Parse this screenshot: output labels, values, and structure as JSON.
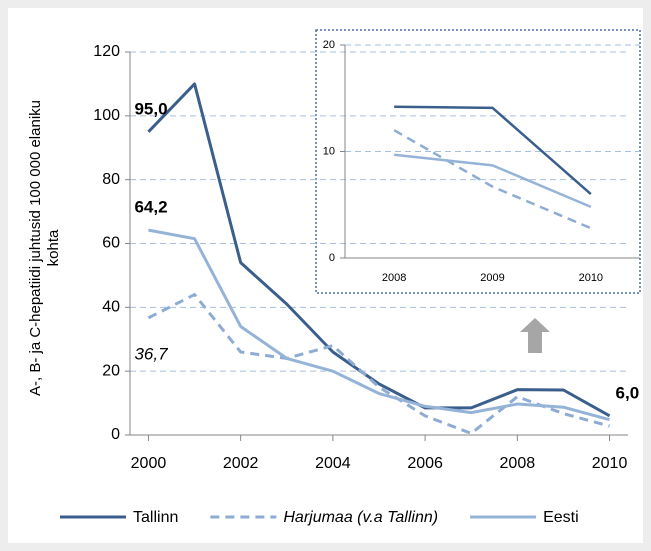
{
  "chart_data": [
    {
      "type": "line",
      "ylabel": "A-, B- ja C-hepatiidi juhtusid 100 000 elaniku kohta",
      "x": [
        2000,
        2001,
        2002,
        2003,
        2004,
        2005,
        2006,
        2007,
        2008,
        2009,
        2010
      ],
      "xlim": [
        1999.6,
        2010.4
      ],
      "xticks": [
        2000,
        2002,
        2004,
        2006,
        2008,
        2010
      ],
      "ylim": [
        0,
        120
      ],
      "yticks": [
        0,
        20,
        40,
        60,
        80,
        100,
        120
      ],
      "grid": true,
      "legend": "bottom",
      "series": [
        {
          "name": "Tallinn",
          "color": "#3b5f8c",
          "dash": false,
          "values": [
            95.0,
            110,
            54,
            41,
            26,
            16,
            8.5,
            8.5,
            14.2,
            14.1,
            6.0
          ],
          "value_labels": [
            "95,0",
            null,
            null,
            null,
            null,
            null,
            null,
            null,
            null,
            null,
            "6,0"
          ]
        },
        {
          "name": "Harjumaa (v.a Tallinn)",
          "color": "#8eacd3",
          "dash": true,
          "values": [
            36.7,
            44,
            26,
            24,
            28,
            15,
            6,
            0.5,
            12,
            6.7,
            2.8
          ],
          "value_labels": [
            "36,7",
            null,
            null,
            null,
            null,
            null,
            null,
            null,
            null,
            null,
            null
          ]
        },
        {
          "name": "Eesti",
          "color": "#95b3d7",
          "dash": false,
          "values": [
            64.2,
            61.5,
            34,
            24,
            20,
            13,
            9,
            7,
            9.7,
            8.7,
            4.8
          ],
          "value_labels": [
            "64,2",
            null,
            null,
            null,
            null,
            null,
            null,
            null,
            null,
            null,
            null
          ]
        }
      ]
    },
    {
      "type": "line",
      "categories": [
        "2008",
        "2009",
        "2010"
      ],
      "ylim": [
        0,
        20
      ],
      "yticks": [
        0,
        10,
        20
      ],
      "grid": true,
      "series": [
        {
          "color": "#3b5f8c",
          "dash": false,
          "values": [
            14.2,
            14.1,
            6.0
          ]
        },
        {
          "color": "#8eacd3",
          "dash": true,
          "values": [
            12,
            6.7,
            2.8
          ]
        },
        {
          "color": "#95b3d7",
          "dash": false,
          "values": [
            9.7,
            8.7,
            4.8
          ]
        }
      ]
    }
  ]
}
